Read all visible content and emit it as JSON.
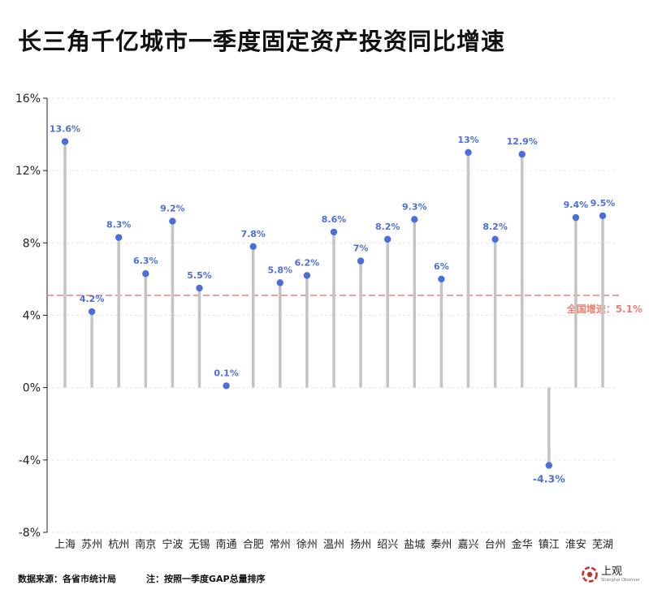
{
  "title": "长三角千亿城市一季度固定资产投资同比增速",
  "footer": {
    "source": "数据来源：各省市统计局",
    "note": "注：按照一季度GAP总量排序"
  },
  "logo": {
    "text": "上观",
    "subtext": "Shanghai Observer",
    "icon": "shanghai-observer-logo-icon"
  },
  "colors": {
    "point": "#4a6fdc",
    "stem": "#c4c4c4",
    "reference": "#f08070",
    "grid": "#e6e6e6"
  },
  "chart_data": {
    "type": "lollipop",
    "title": "长三角千亿城市一季度固定资产投资同比增速",
    "categories": [
      "上海",
      "苏州",
      "杭州",
      "南京",
      "宁波",
      "无锡",
      "南通",
      "合肥",
      "常州",
      "徐州",
      "温州",
      "扬州",
      "绍兴",
      "盐城",
      "泰州",
      "嘉兴",
      "台州",
      "金华",
      "镇江",
      "淮安",
      "芜湖"
    ],
    "values": [
      13.6,
      4.2,
      8.3,
      6.3,
      9.2,
      5.5,
      0.1,
      7.8,
      5.8,
      6.2,
      8.6,
      7.0,
      8.2,
      9.3,
      6.0,
      13.0,
      8.2,
      12.9,
      -4.3,
      9.4,
      9.5
    ],
    "value_labels": [
      "13.6%",
      "4.2%",
      "8.3%",
      "6.3%",
      "9.2%",
      "5.5%",
      "0.1%",
      "7.8%",
      "5.8%",
      "6.2%",
      "8.6%",
      "7%",
      "8.2%",
      "9.3%",
      "6%",
      "13%",
      "8.2%",
      "12.9%",
      "-4.3%",
      "9.4%",
      "9.5%"
    ],
    "ylim": [
      -8,
      16
    ],
    "yticks": [
      -8,
      -4,
      0,
      4,
      8,
      12,
      16
    ],
    "ytick_labels": [
      "-8%",
      "-4%",
      "0%",
      "4%",
      "8%",
      "12%",
      "16%"
    ],
    "grid": true,
    "reference_line": {
      "value": 5.1,
      "label": "全国增速：5.1%"
    }
  }
}
